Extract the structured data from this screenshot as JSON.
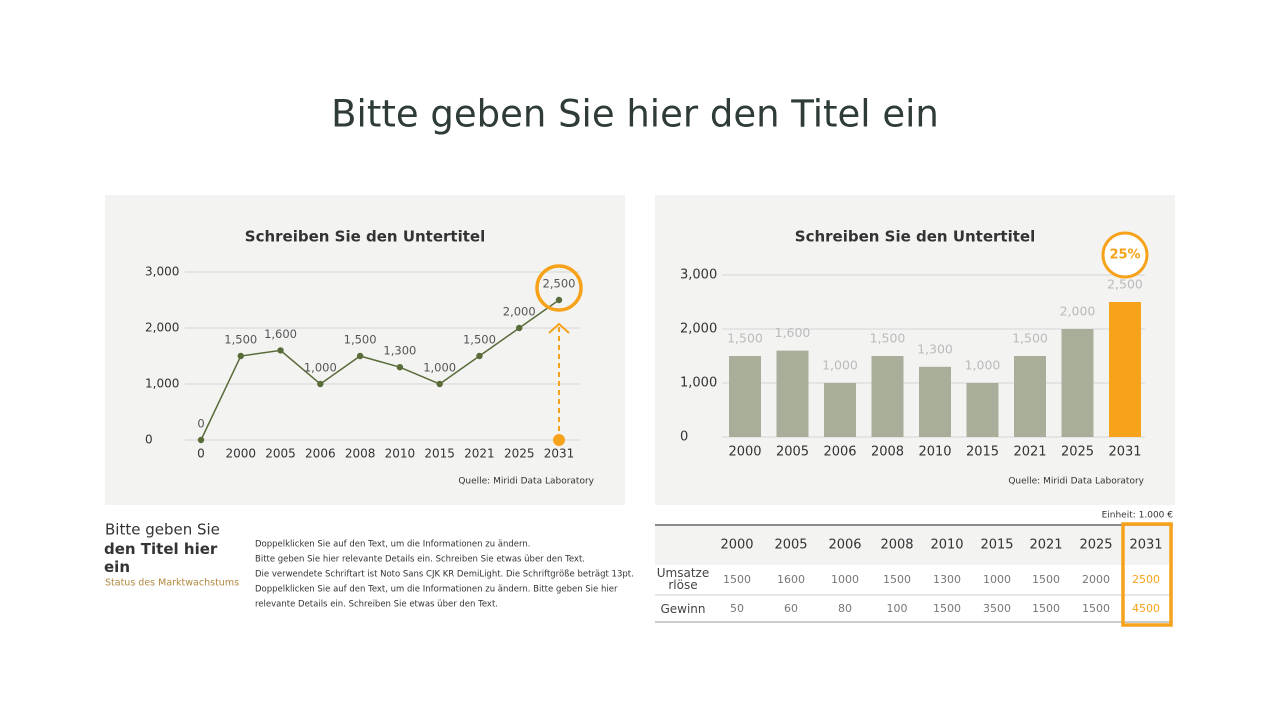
{
  "header": {
    "title": "Bitte geben Sie hier den Titel ein"
  },
  "chart_data": [
    {
      "type": "line",
      "title": "Schreiben Sie den Untertitel",
      "source": "Quelle: Miridi Data Laboratory",
      "categories": [
        "0",
        "2000",
        "2005",
        "2006",
        "2008",
        "2010",
        "2015",
        "2021",
        "2025",
        "2031"
      ],
      "values": [
        0,
        1500,
        1600,
        1000,
        1500,
        1300,
        1000,
        1500,
        2000,
        2500
      ],
      "value_labels": [
        "0",
        "1,500",
        "1,600",
        "1,000",
        "1,500",
        "1,300",
        "1,000",
        "1,500",
        "2,000",
        "2,500"
      ],
      "color": "#5a6b3a",
      "highlight_color": "#f7a21b",
      "ylim": [
        0,
        3000
      ],
      "yticks": [
        0,
        {
          "value": 1000,
          "label": "1,000"
        },
        {
          "value": 2000,
          "label": "2,000"
        },
        {
          "value": 3000,
          "label": "3,000"
        }
      ],
      "grid": true
    },
    {
      "type": "bar",
      "title": "Schreiben Sie den Untertitel",
      "source": "Quelle: Miridi Data Laboratory",
      "annotation": "25%",
      "categories": [
        "2000",
        "2005",
        "2006",
        "2008",
        "2010",
        "2015",
        "2021",
        "2025",
        "2031"
      ],
      "values": [
        1500,
        1600,
        1000,
        1500,
        1300,
        1000,
        1500,
        2000,
        2500
      ],
      "value_labels": [
        "1,500",
        "1,600",
        "1,000",
        "1,500",
        "1,300",
        "1,000",
        "1,500",
        "2,000",
        "2,500"
      ],
      "color": "#a8ae9a",
      "highlight_color": "#f7a21b",
      "ylim": [
        0,
        3000
      ],
      "yticks": [
        0,
        {
          "value": 1000,
          "label": "1,000"
        },
        {
          "value": 2000,
          "label": "2,000"
        },
        {
          "value": 3000,
          "label": "3,000"
        }
      ],
      "grid": true
    }
  ],
  "text_block": {
    "title_line1": "Bitte geben Sie",
    "title_line2": "den Titel hier ein",
    "subtitle": "Status des Marktwachstums",
    "body": [
      "Doppelklicken Sie auf den Text, um die Informationen zu ändern.",
      "Bitte geben Sie hier relevante Details ein. Schreiben Sie etwas über den Text.",
      "Die verwendete Schriftart ist Noto Sans CJK KR DemiLight. Die Schriftgröße beträgt 13pt.",
      "Doppelklicken Sie auf den Text, um die Informationen zu ändern. Bitte geben Sie hier",
      "relevante Details ein. Schreiben Sie etwas über den Text."
    ]
  },
  "table": {
    "unit": "Einheit: 1.000 €",
    "header": [
      2000,
      2005,
      2006,
      2008,
      2010,
      2015,
      2021,
      2025,
      2031
    ],
    "rows": [
      {
        "label": "Umsatze rlöse",
        "values": [
          1500,
          1600,
          1000,
          1500,
          1300,
          1000,
          1500,
          2000,
          2500
        ]
      },
      {
        "label": "Gewinn",
        "values": [
          50,
          60,
          80,
          100,
          1500,
          3500,
          1500,
          1500,
          4500
        ]
      }
    ]
  }
}
